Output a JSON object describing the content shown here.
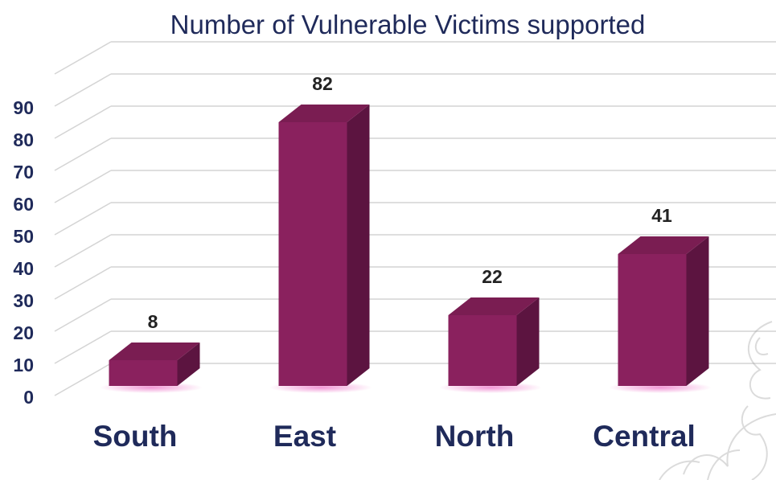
{
  "colors": {
    "bar_front": "#8a215e",
    "bar_top": "#7a1d52",
    "bar_side": "#5c1440",
    "bar_glow": "#f08ad0",
    "grid": "#d4d4d4",
    "text_navy": "#1f2a5a"
  },
  "chart_data": {
    "type": "bar",
    "title": "Number of Vulnerable Victims supported",
    "xlabel": "",
    "ylabel": "",
    "categories": [
      "South",
      "East",
      "North",
      "Central"
    ],
    "values": [
      8,
      82,
      22,
      41
    ],
    "data_labels": [
      "8",
      "82",
      "22",
      "41"
    ],
    "yticks": [
      "0",
      "10",
      "20",
      "30",
      "40",
      "50",
      "60",
      "70",
      "80",
      "90"
    ],
    "ylim": [
      0,
      100
    ],
    "grid": true,
    "legend": "none",
    "style": "3d-column"
  },
  "decoration": {
    "watermark": "floral-ornament-icon"
  }
}
